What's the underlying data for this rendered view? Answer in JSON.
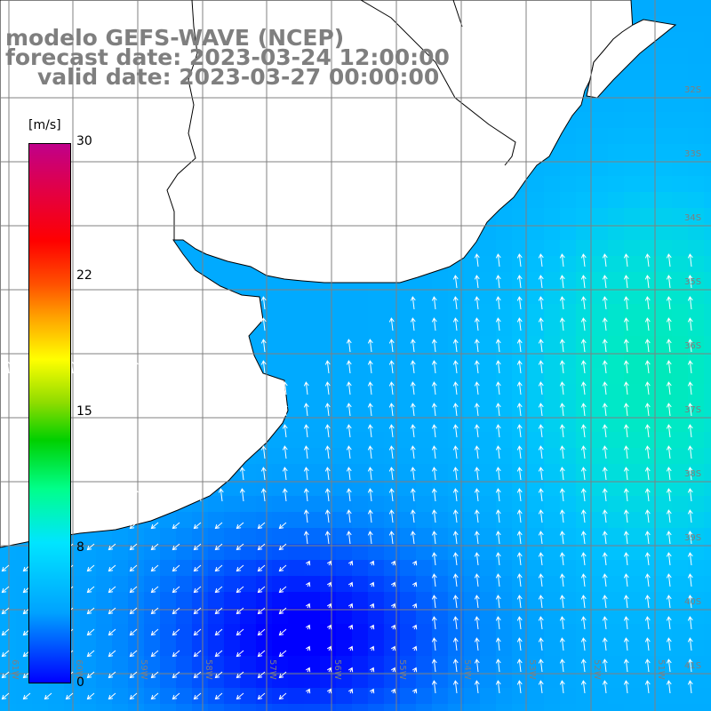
{
  "title": {
    "line1": "modelo GEFS-WAVE (NCEP)",
    "line2": "forecast date: 2023-03-24 12:00:00",
    "line3": "valid date: 2023-03-27 00:00:00"
  },
  "colorbar": {
    "unit": "[m/s]",
    "ticks": [
      "30",
      "22",
      "15",
      "8",
      "0"
    ],
    "tick_values": [
      30,
      22,
      15,
      8,
      0
    ],
    "min": 0,
    "max": 30,
    "colors": [
      "#0000ff",
      "#00a2ff",
      "#00e5ff",
      "#00ff8a",
      "#00d000",
      "#ffff00",
      "#ff8000",
      "#ff0000",
      "#c0008a"
    ]
  },
  "map": {
    "lat_labels": [
      "32S",
      "33S",
      "34S",
      "35S",
      "36S",
      "37S",
      "38S",
      "39S",
      "40S",
      "41S"
    ],
    "lon_labels": [
      "61W",
      "60W",
      "59W",
      "58W",
      "57W",
      "56W",
      "55W",
      "54W",
      "53W",
      "52W",
      "51W"
    ],
    "land_color": "#ffffff",
    "grid_color": "#808080",
    "arrow_color": "#ffffff"
  }
}
